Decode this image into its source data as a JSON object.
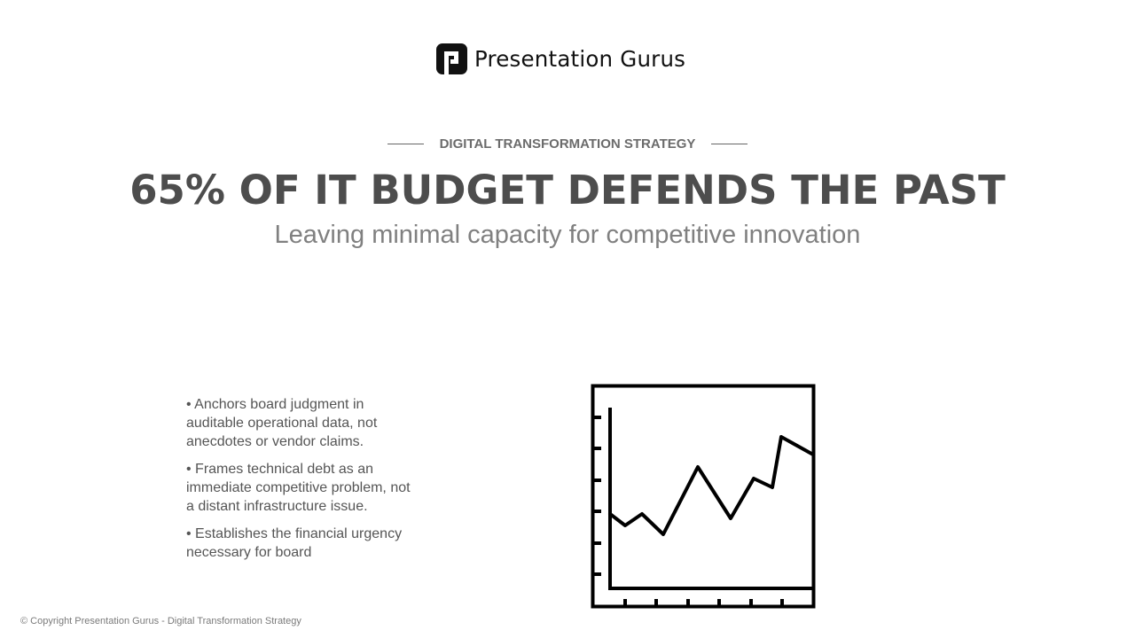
{
  "brand": {
    "name": "Presentation Gurus",
    "logo_icon": "pg-monogram-icon",
    "logo_color": "#111111"
  },
  "eyebrow": "DIGITAL TRANSFORMATION STRATEGY",
  "headline": "65% OF IT BUDGET DEFENDS THE PAST",
  "subheadline": "Leaving minimal capacity for competitive innovation",
  "bullets": [
    "• Anchors board judgment in auditable operational data, not anecdotes or vendor claims.",
    "• Frames technical debt as an immediate competitive problem, not a distant infrastructure issue.",
    "• Establishes the financial urgency necessary for board"
  ],
  "illustration": {
    "icon": "line-chart-icon",
    "color": "#000000"
  },
  "footer": "© Copyright Presentation Gurus - Digital Transformation Strategy",
  "colors": {
    "headline": "#4d4d4d",
    "subheadline": "#808080",
    "eyebrow": "#6b6b6b",
    "body_text": "#555555",
    "background": "#ffffff"
  }
}
